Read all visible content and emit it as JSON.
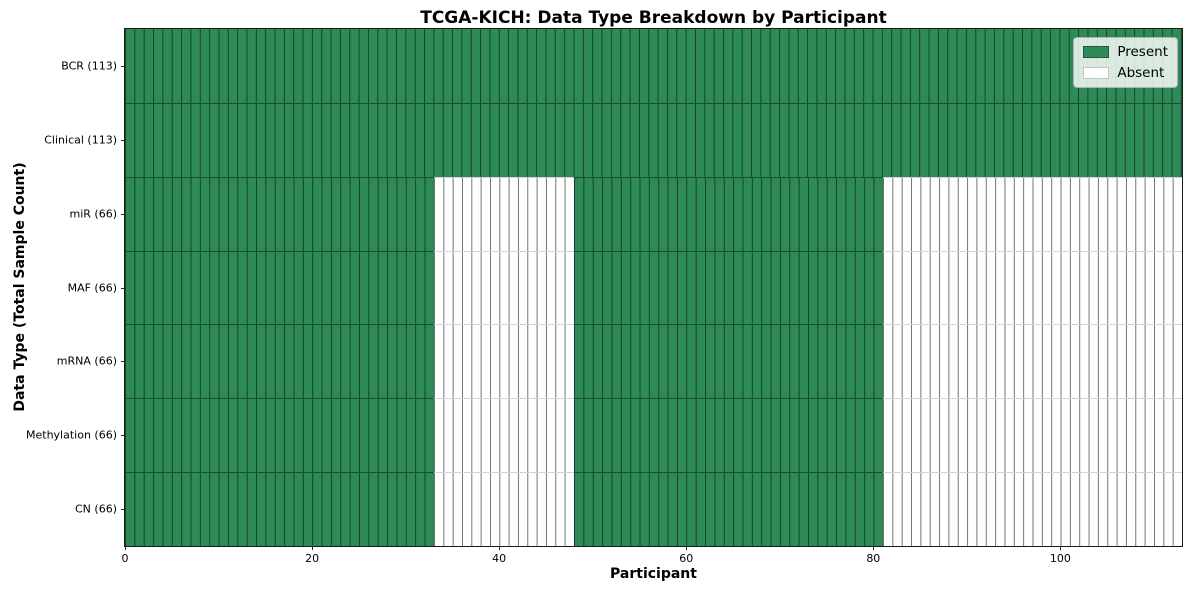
{
  "chart_data": {
    "type": "heatmap",
    "title": "TCGA-KICH: Data Type Breakdown by Participant",
    "xlabel": "Participant",
    "ylabel": "Data Type (Total Sample Count)",
    "xlim": [
      0,
      113
    ],
    "n_participants": 113,
    "x_ticks": [
      0,
      20,
      40,
      60,
      80,
      100
    ],
    "grid": false,
    "legend_position": "upper right",
    "legend": [
      {
        "label": "Present",
        "color": "#2e8b57"
      },
      {
        "label": "Absent",
        "color": "#ffffff"
      }
    ],
    "rows": [
      {
        "label": "BCR (113)",
        "count": 113,
        "present_ranges": [
          [
            0,
            113
          ]
        ]
      },
      {
        "label": "Clinical (113)",
        "count": 113,
        "present_ranges": [
          [
            0,
            113
          ]
        ]
      },
      {
        "label": "miR (66)",
        "count": 66,
        "present_ranges": [
          [
            0,
            33
          ],
          [
            48,
            81
          ]
        ]
      },
      {
        "label": "MAF (66)",
        "count": 66,
        "present_ranges": [
          [
            0,
            33
          ],
          [
            48,
            81
          ]
        ]
      },
      {
        "label": "mRNA (66)",
        "count": 66,
        "present_ranges": [
          [
            0,
            33
          ],
          [
            48,
            81
          ]
        ]
      },
      {
        "label": "Methylation (66)",
        "count": 66,
        "present_ranges": [
          [
            0,
            33
          ],
          [
            48,
            81
          ]
        ]
      },
      {
        "label": "CN (66)",
        "count": 66,
        "present_ranges": [
          [
            0,
            33
          ],
          [
            48,
            81
          ]
        ]
      }
    ]
  }
}
